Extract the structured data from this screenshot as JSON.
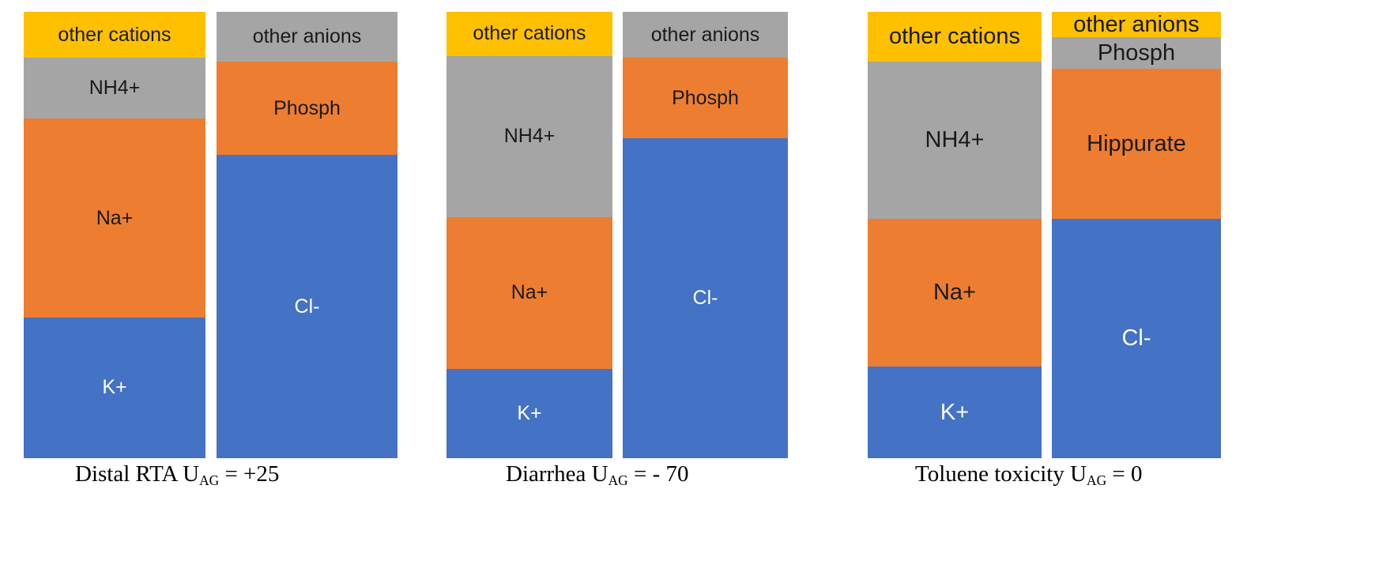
{
  "colors": {
    "other": "#FFC000",
    "gray": "#A5A5A5",
    "orange": "#ED7D31",
    "blue": "#4472C4"
  },
  "panels": [
    {
      "caption": {
        "prefix": "Distal RTA U",
        "sub": "AG",
        "suffix": " = +25"
      },
      "cations": [
        {
          "label": "other cations",
          "percent": 10.3,
          "color": "#FFC000"
        },
        {
          "label": "NH4+",
          "percent": 13.6,
          "color": "#A5A5A5"
        },
        {
          "label": "Na+",
          "percent": 44.6,
          "color": "#ED7D31"
        },
        {
          "label": "K+",
          "percent": 31.5,
          "color": "#4472C4"
        }
      ],
      "anions": [
        {
          "label": "other anions",
          "percent": 11.2,
          "color": "#A5A5A5"
        },
        {
          "label": "Phosph",
          "percent": 20.9,
          "color": "#ED7D31"
        },
        {
          "label": "Cl-",
          "percent": 67.9,
          "color": "#4472C4"
        }
      ]
    },
    {
      "caption": {
        "prefix": "Diarrhea U",
        "sub": "AG",
        "suffix": " = - 70"
      },
      "cations": [
        {
          "label": "other cations",
          "percent": 9.9,
          "color": "#FFC000"
        },
        {
          "label": "NH4+",
          "percent": 36.1,
          "color": "#A5A5A5"
        },
        {
          "label": "Na+",
          "percent": 34.0,
          "color": "#ED7D31"
        },
        {
          "label": "K+",
          "percent": 20.0,
          "color": "#4472C4"
        }
      ],
      "anions": [
        {
          "label": "other anions",
          "percent": 10.3,
          "color": "#A5A5A5"
        },
        {
          "label": "Phosph",
          "percent": 18.1,
          "color": "#ED7D31"
        },
        {
          "label": "Cl-",
          "percent": 71.6,
          "color": "#4472C4"
        }
      ]
    },
    {
      "caption": {
        "prefix": "Toluene toxicity U",
        "sub": "AG",
        "suffix": " = 0"
      },
      "cations": [
        {
          "label": "other cations",
          "percent": 11.2,
          "color": "#FFC000"
        },
        {
          "label": "NH4+",
          "percent": 35.2,
          "color": "#A5A5A5"
        },
        {
          "label": "Na+",
          "percent": 33.1,
          "color": "#ED7D31"
        },
        {
          "label": "K+",
          "percent": 20.5,
          "color": "#4472C4"
        }
      ],
      "anions": [
        {
          "label": "other anions",
          "percent": 5.7,
          "color": "#FFC000"
        },
        {
          "label": "Phosph",
          "percent": 7.1,
          "color": "#A5A5A5"
        },
        {
          "label": "Hippurate",
          "percent": 33.6,
          "color": "#ED7D31"
        },
        {
          "label": "Cl-",
          "percent": 53.6,
          "color": "#4472C4"
        }
      ]
    }
  ]
}
